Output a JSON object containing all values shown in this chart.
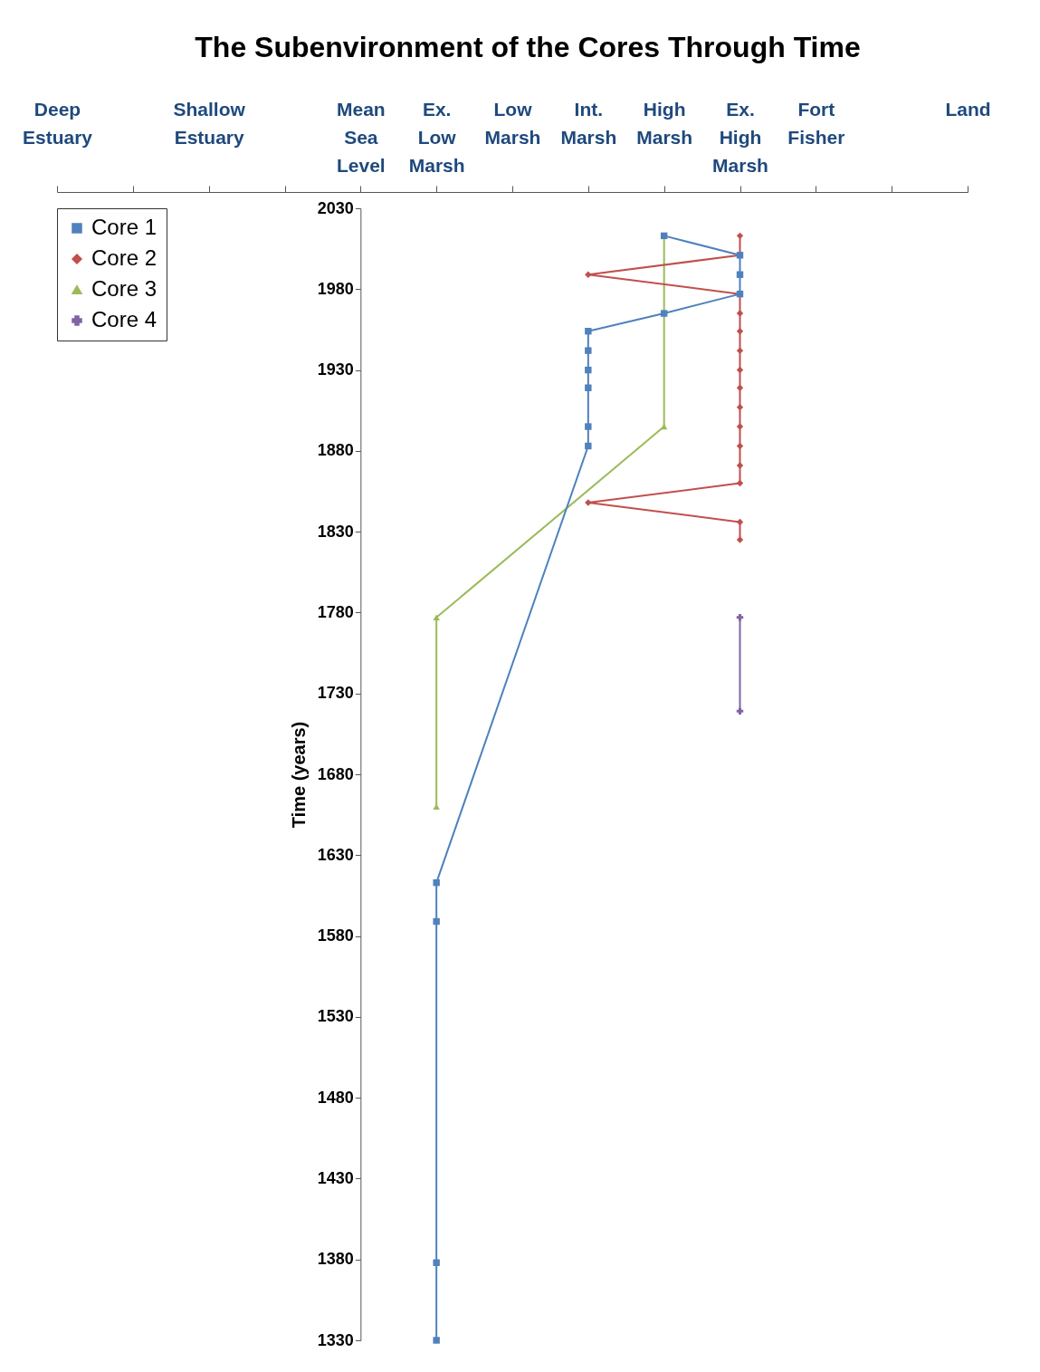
{
  "chart_data": {
    "type": "line",
    "title": "The Subenvironment of the Cores Through Time",
    "ylabel": "Time (years)",
    "categories": [
      "Deep Estuary",
      null,
      "Shallow Estuary",
      null,
      "Mean Sea Level",
      "Ex. Low Marsh",
      "Low Marsh",
      "Int. Marsh",
      "High Marsh",
      "Ex. High Marsh",
      "Fort Fisher",
      null,
      "Land"
    ],
    "ylim": [
      1330,
      2030
    ],
    "yticks": [
      1330,
      1380,
      1430,
      1480,
      1530,
      1580,
      1630,
      1680,
      1730,
      1780,
      1830,
      1880,
      1930,
      1980,
      2030
    ],
    "grid": false,
    "legend": "top left",
    "series": [
      {
        "name": "Core 1",
        "color": "#4f81bd",
        "marker": "square",
        "x": [
          "High Marsh",
          "Ex. High Marsh",
          "Ex. High Marsh",
          "Ex. High Marsh",
          "High Marsh",
          "Int. Marsh",
          "Int. Marsh",
          "Int. Marsh",
          "Int. Marsh",
          "Int. Marsh",
          "Int. Marsh",
          "Ex. Low Marsh",
          "Ex. Low Marsh",
          "Ex. Low Marsh",
          "Ex. Low Marsh"
        ],
        "values": [
          2013,
          2001,
          1989,
          1977,
          1965,
          1954,
          1942,
          1930,
          1919,
          1895,
          1883,
          1613,
          1589,
          1378,
          1330
        ]
      },
      {
        "name": "Core 2",
        "color": "#c0504d",
        "marker": "diamond",
        "x": [
          "Ex. High Marsh",
          "Ex. High Marsh",
          "Int. Marsh",
          "Ex. High Marsh",
          "Ex. High Marsh",
          "Ex. High Marsh",
          "Ex. High Marsh",
          "Ex. High Marsh",
          "Ex. High Marsh",
          "Ex. High Marsh",
          "Ex. High Marsh",
          "Ex. High Marsh",
          "Ex. High Marsh",
          "Ex. High Marsh",
          "Int. Marsh",
          "Ex. High Marsh",
          "Ex. High Marsh"
        ],
        "values": [
          2013,
          2001,
          1989,
          1977,
          1965,
          1954,
          1942,
          1930,
          1919,
          1907,
          1895,
          1883,
          1871,
          1860,
          1848,
          1836,
          1825
        ]
      },
      {
        "name": "Core 3",
        "color": "#9bbb59",
        "marker": "triangle",
        "x": [
          "High Marsh",
          "High Marsh",
          "Ex. Low Marsh",
          "Ex. Low Marsh"
        ],
        "values": [
          2013,
          1895,
          1777,
          1660
        ]
      },
      {
        "name": "Core 4",
        "color": "#8064a2",
        "marker": "cross",
        "x": [
          "Ex. High Marsh",
          "Ex. High Marsh"
        ],
        "values": [
          1777,
          1719
        ]
      }
    ]
  }
}
